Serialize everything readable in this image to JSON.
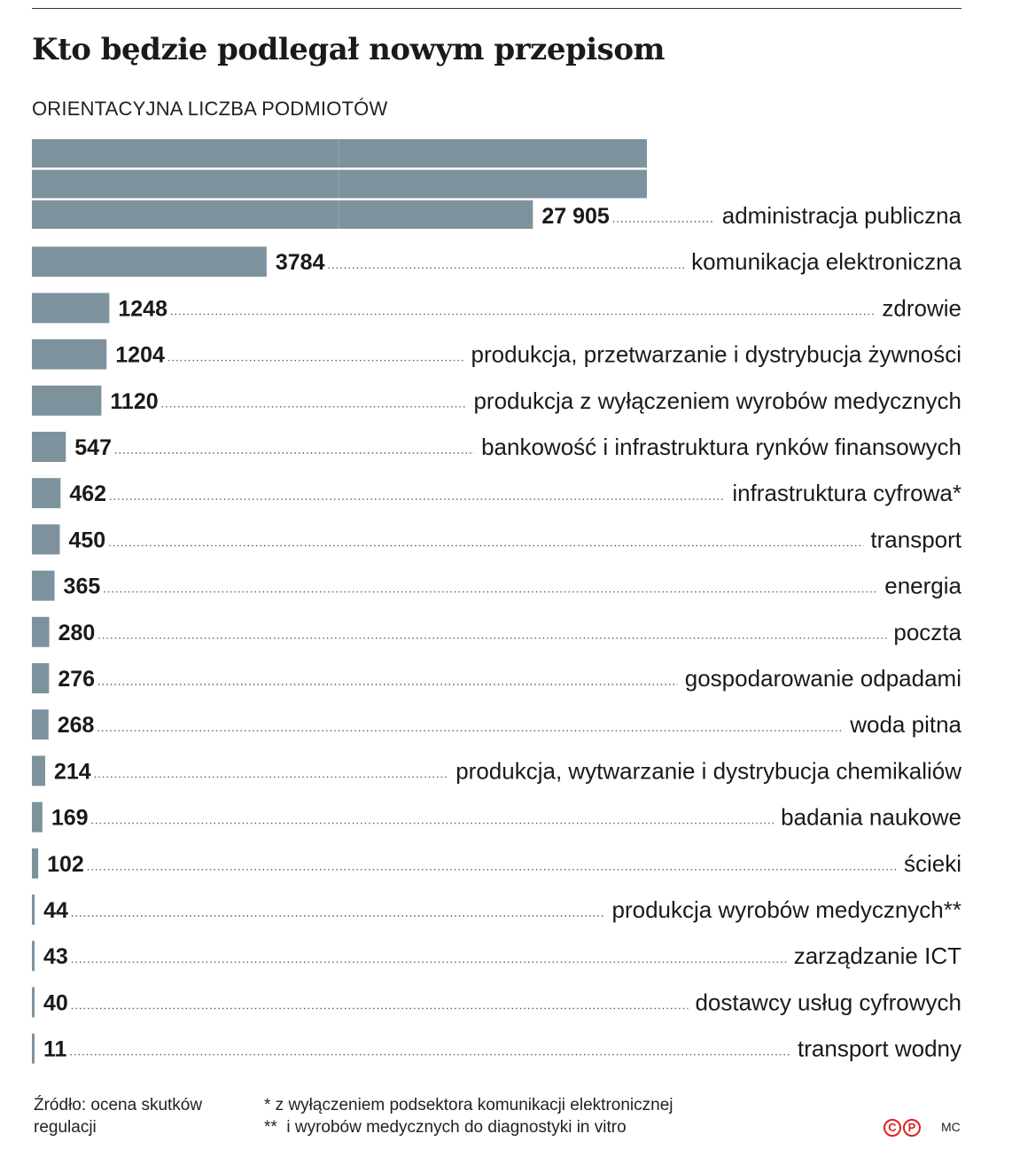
{
  "chart_data": {
    "type": "bar",
    "orientation": "horizontal",
    "title": "Kto będzie podlegał nowym przepisom",
    "subtitle": "ORIENTACYJNA LICZBA PODMIOTÓW",
    "categories": [
      "administracja publiczna",
      "komunikacja elektroniczna",
      "zdrowie",
      "produkcja, przetwarzanie i dystrybucja żywności",
      "produkcja z wyłączeniem wyrobów medycznych",
      "bankowość i infrastruktura rynków finansowych",
      "infrastruktura cyfrowa*",
      "transport",
      "energia",
      "poczta",
      "gospodarowanie odpadami",
      "woda pitna",
      "produkcja, wytwarzanie i dystrybucja chemikaliów",
      "badania naukowe",
      "ścieki",
      "produkcja wyrobów medycznych**",
      "zarządzanie ICT",
      "dostawcy usług cyfrowych",
      "transport wodny"
    ],
    "values": [
      27905,
      3784,
      1248,
      1204,
      1120,
      547,
      462,
      450,
      365,
      280,
      276,
      268,
      214,
      169,
      102,
      44,
      43,
      40,
      11
    ],
    "value_labels": [
      "27 905",
      "3784",
      "1248",
      "1204",
      "1120",
      "547",
      "462",
      "450",
      "365",
      "280",
      "276",
      "268",
      "214",
      "169",
      "102",
      "44",
      "43",
      "40",
      "11"
    ],
    "broken_first_bar": true,
    "bar_color": "#7e929e",
    "grid": false,
    "legend": "none"
  },
  "footer": {
    "source": "Źródło: ocena skutków regulacji",
    "footnote_1": "* z wyłączeniem podsektora komunikacji elektronicznej",
    "footnote_2": "**  i wyrobów medycznych do diagnostyki in vitro",
    "logo_text": [
      "C",
      "P"
    ],
    "author": "MC"
  }
}
